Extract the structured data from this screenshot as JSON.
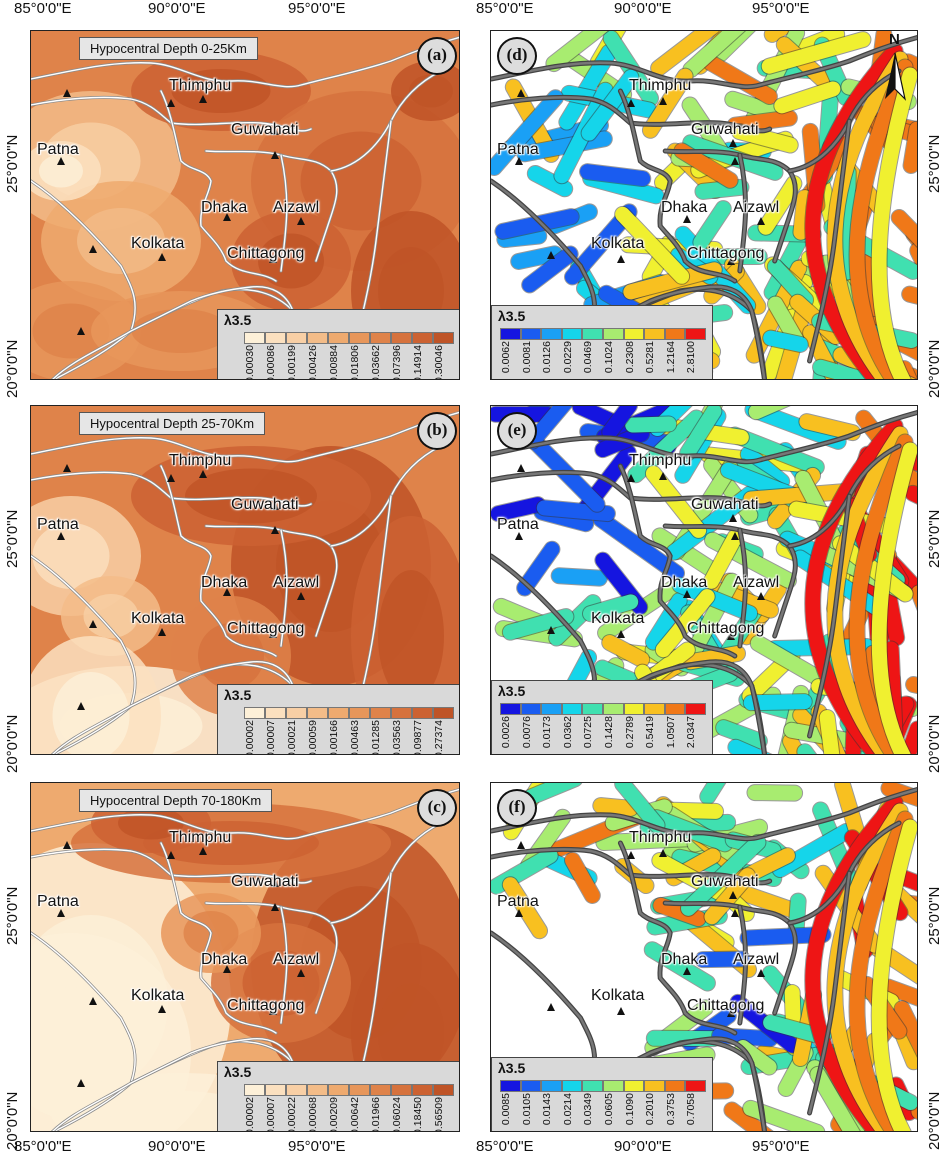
{
  "axes": {
    "x_ticks": [
      "85°0'0\"E",
      "90°0'0\"E",
      "95°0'0\"E"
    ],
    "y_ticks": [
      "25°0'0\"N",
      "20°0'0\"N"
    ]
  },
  "cities": [
    "Thimphu",
    "Guwahati",
    "Patna",
    "Dhaka",
    "Aizawl",
    "Kolkata",
    "Chittagong"
  ],
  "panels": [
    {
      "id": "a",
      "title": "Hypocentral Depth 0-25Km",
      "legend_title": "λ3.5",
      "legend_values": [
        "0.00030",
        "0.00086",
        "0.00199",
        "0.00426",
        "0.00884",
        "0.01806",
        "0.03662",
        "0.07396",
        "0.14914",
        "0.30046"
      ]
    },
    {
      "id": "b",
      "title": "Hypocentral Depth 25-70Km",
      "legend_title": "λ3.5",
      "legend_values": [
        "0.00002",
        "0.00007",
        "0.00021",
        "0.00059",
        "0.00166",
        "0.00463",
        "0.01285",
        "0.03563",
        "0.09877",
        "0.27374"
      ]
    },
    {
      "id": "c",
      "title": "Hypocentral Depth 70-180Km",
      "legend_title": "λ3.5",
      "legend_values": [
        "0.00002",
        "0.00007",
        "0.00022",
        "0.00068",
        "0.00209",
        "0.00642",
        "0.01966",
        "0.06024",
        "0.18450",
        "0.56509"
      ]
    },
    {
      "id": "d",
      "title": "",
      "legend_title": "λ3.5",
      "legend_values": [
        "0.0062",
        "0.0081",
        "0.0126",
        "0.0229",
        "0.0469",
        "0.1024",
        "0.2308",
        "0.5281",
        "1.2164",
        "2.8100"
      ]
    },
    {
      "id": "e",
      "title": "",
      "legend_title": "λ3.5",
      "legend_values": [
        "0.0026",
        "0.0076",
        "0.0173",
        "0.0362",
        "0.0725",
        "0.1428",
        "0.2789",
        "0.5419",
        "1.0507",
        "2.0347"
      ]
    },
    {
      "id": "f",
      "title": "",
      "legend_title": "λ3.5",
      "legend_values": [
        "0.0085",
        "0.0105",
        "0.0143",
        "0.0214",
        "0.0349",
        "0.0605",
        "0.1090",
        "0.2010",
        "0.3753",
        "0.7058"
      ]
    }
  ],
  "north_arrow": "N",
  "colors": {
    "orange_ramp": [
      "#fdf0d8",
      "#fbe0bf",
      "#f8cfa5",
      "#f3bc88",
      "#eeaa6f",
      "#e7965a",
      "#df834a",
      "#d6723d",
      "#cc6232",
      "#bf5427"
    ],
    "rainbow_ramp": [
      "#1515e0",
      "#1a5cf0",
      "#1aa0f5",
      "#15d5ea",
      "#40e0b0",
      "#a8ec70",
      "#f0f030",
      "#f8c020",
      "#f07818",
      "#ee1515"
    ]
  }
}
